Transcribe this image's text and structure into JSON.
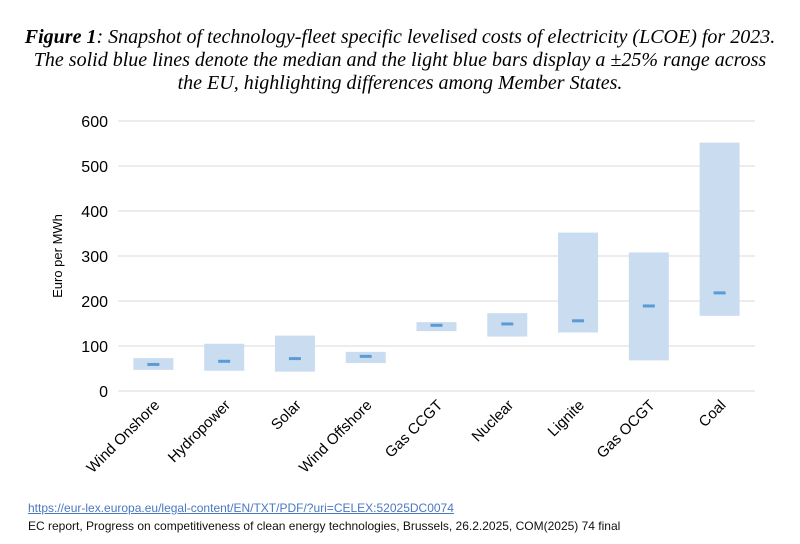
{
  "caption": {
    "lead": "Figure 1",
    "line1_rest": ": Snapshot of technology-fleet specific levelised costs of electricity (LCOE) for 2023.",
    "line2": "The solid blue lines denote the median and the light blue bars display a ±25% range across",
    "line3": "the EU, highlighting differences among Member States."
  },
  "source": {
    "link": "https://eur-lex.europa.eu/legal-content/EN/TXT/PDF/?uri=CELEX:52025DC0074",
    "note": "EC report, Progress on competitiveness of clean energy technologies, Brussels, 26.2.2025, COM(2025) 74 final"
  },
  "chart_data": {
    "type": "bar",
    "ylabel": "Euro per MWh",
    "ylim": [
      0,
      600
    ],
    "yticks": [
      0,
      100,
      200,
      300,
      400,
      500,
      600
    ],
    "grid": true,
    "categories": [
      "Wind Onshore",
      "Hydropower",
      "Solar",
      "Wind Offshore",
      "Gas CCGT",
      "Nuclear",
      "Lignite",
      "Gas OCGT",
      "Coal"
    ],
    "range_low": [
      47,
      45,
      43,
      62,
      133,
      121,
      130,
      68,
      167
    ],
    "range_high": [
      73,
      105,
      123,
      87,
      153,
      173,
      352,
      308,
      552
    ],
    "median": [
      59,
      66,
      72,
      77,
      146,
      149,
      156,
      189,
      218
    ],
    "colors": {
      "range": "#c9dcf0",
      "median": "#5b9bd5",
      "grid": "#d9d9d9"
    }
  }
}
